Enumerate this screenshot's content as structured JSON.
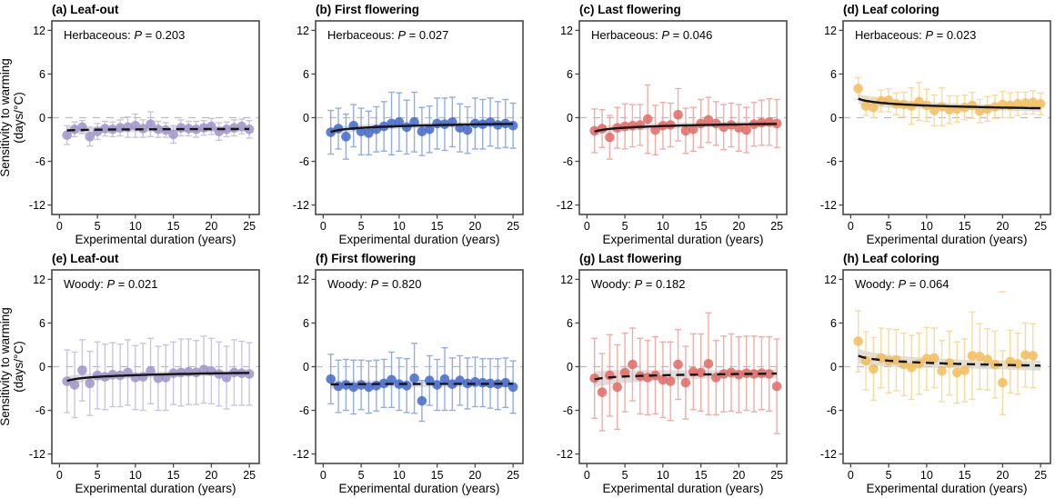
{
  "figure": {
    "name": "Phenological sensitivity to warming vs experimental duration",
    "background": "#ffffff",
    "border_color": "#474747",
    "zero_line_color": "#bcbcbc",
    "trend_color": "#141414",
    "band_color": "#c4c4c4",
    "text_color": "#000000",
    "xlabel": "Experimental duration (years)",
    "ylabel_lines": [
      "Sensitivity to warming",
      "(days/°C)"
    ],
    "x_ticks": [
      0,
      5,
      10,
      15,
      20,
      25
    ],
    "y_ticks": [
      12,
      6,
      0,
      -6,
      -12
    ],
    "xlim": [
      -1,
      26.3
    ],
    "ylim": [
      -13.3,
      13.3
    ],
    "p_symbol": "P"
  },
  "chart_data": [
    {
      "type": "scatter",
      "panel_letter": "(a)",
      "title": "Leaf-out",
      "group": "Herbaceous",
      "p_value": "0.203",
      "point_color": "#a094c8",
      "bar_color": "#c9c0e2",
      "show_ylabel": true,
      "trend": {
        "style": "dashed",
        "y_at_x1": -1.75,
        "y_at_x25": -1.55,
        "band_halfwidth": [
          0.5,
          0.3,
          0.4
        ]
      },
      "x": [
        1,
        2,
        3,
        4,
        5,
        6,
        7,
        8,
        9,
        10,
        11,
        12,
        13,
        14,
        15,
        16,
        17,
        18,
        19,
        20,
        21,
        22,
        23,
        24,
        25
      ],
      "y": [
        -2.4,
        -1.6,
        -1.3,
        -2.6,
        -1.9,
        -1.5,
        -1.6,
        -1.4,
        -1.3,
        -1.1,
        -1.5,
        -0.9,
        -1.6,
        -1.7,
        -2.3,
        -1.4,
        -1.5,
        -1.6,
        -1.4,
        -1.2,
        -1.9,
        -1.6,
        -1.4,
        -1.2,
        -1.6
      ],
      "err": [
        1.3,
        1.0,
        0.9,
        1.3,
        1.1,
        1.0,
        1.0,
        1.1,
        1.4,
        1.6,
        1.2,
        1.7,
        1.1,
        1.0,
        1.2,
        1.1,
        1.0,
        1.1,
        1.0,
        1.1,
        1.2,
        1.0,
        1.1,
        1.0,
        1.2
      ]
    },
    {
      "type": "scatter",
      "panel_letter": "(b)",
      "title": "First flowering",
      "group": "Herbaceous",
      "p_value": "0.027",
      "point_color": "#4468c9",
      "bar_color": "#8ea8e4",
      "show_ylabel": false,
      "trend": {
        "style": "solid",
        "y_at_x1": -1.95,
        "y_at_x25": -0.85,
        "band_halfwidth": [
          0.5,
          0.3,
          0.4
        ]
      },
      "x": [
        1,
        2,
        3,
        4,
        5,
        6,
        7,
        8,
        9,
        10,
        11,
        12,
        13,
        14,
        15,
        16,
        17,
        18,
        19,
        20,
        21,
        22,
        23,
        24,
        25
      ],
      "y": [
        -2.0,
        -1.5,
        -2.6,
        -1.1,
        -1.9,
        -2.1,
        -1.6,
        -1.2,
        -0.8,
        -0.6,
        -1.3,
        -0.6,
        -1.9,
        -1.6,
        -0.8,
        -0.9,
        -0.6,
        -1.4,
        -1.7,
        -0.8,
        -0.9,
        -0.6,
        -1.0,
        -0.8,
        -1.1
      ],
      "err": [
        3.0,
        2.8,
        3.1,
        2.9,
        3.2,
        3.0,
        3.1,
        3.4,
        4.3,
        4.0,
        3.7,
        4.1,
        3.3,
        3.2,
        3.5,
        3.6,
        3.4,
        3.3,
        3.2,
        3.5,
        3.4,
        3.3,
        3.2,
        3.3,
        3.1
      ]
    },
    {
      "type": "scatter",
      "panel_letter": "(c)",
      "title": "Last flowering",
      "group": "Herbaceous",
      "p_value": "0.046",
      "point_color": "#e06a65",
      "bar_color": "#f2a8a3",
      "show_ylabel": false,
      "trend": {
        "style": "solid",
        "y_at_x1": -1.9,
        "y_at_x25": -0.85,
        "band_halfwidth": [
          0.55,
          0.3,
          0.45
        ]
      },
      "x": [
        1,
        2,
        3,
        4,
        5,
        6,
        7,
        8,
        9,
        10,
        11,
        12,
        13,
        14,
        15,
        16,
        17,
        18,
        19,
        20,
        21,
        22,
        23,
        24,
        25
      ],
      "y": [
        -1.8,
        -1.5,
        -2.7,
        -1.4,
        -1.2,
        -1.1,
        -1.0,
        -0.2,
        -1.7,
        -1.1,
        -1.0,
        0.4,
        -1.8,
        -1.6,
        -0.8,
        -0.3,
        -0.8,
        -1.3,
        -1.0,
        -1.4,
        -1.7,
        -0.9,
        -0.7,
        -0.6,
        -0.8
      ],
      "err": [
        3.0,
        2.6,
        3.0,
        2.8,
        3.1,
        2.9,
        2.8,
        4.7,
        3.4,
        3.2,
        3.0,
        3.6,
        3.1,
        3.0,
        3.3,
        3.1,
        3.0,
        3.1,
        3.0,
        3.2,
        3.1,
        3.0,
        3.1,
        3.2,
        3.3
      ]
    },
    {
      "type": "scatter",
      "panel_letter": "(d)",
      "title": "Leaf coloring",
      "group": "Herbaceous",
      "p_value": "0.023",
      "point_color": "#f2bd5c",
      "bar_color": "#f8d89c",
      "show_ylabel": false,
      "trend": {
        "style": "solid",
        "y_at_x1": 2.6,
        "y_at_x25": 1.3,
        "band_halfwidth": [
          0.7,
          0.3,
          0.45
        ]
      },
      "x": [
        1,
        2,
        3,
        4,
        5,
        6,
        7,
        8,
        9,
        10,
        11,
        12,
        13,
        14,
        15,
        16,
        17,
        18,
        19,
        20,
        21,
        22,
        23,
        24,
        25
      ],
      "y": [
        4.0,
        1.6,
        1.4,
        2.3,
        2.4,
        1.9,
        1.8,
        1.6,
        2.2,
        1.7,
        1.0,
        1.5,
        1.1,
        1.2,
        1.4,
        1.7,
        0.9,
        1.2,
        1.5,
        1.8,
        1.7,
        1.9,
        2.0,
        2.1,
        1.9
      ],
      "err": [
        1.5,
        1.3,
        1.4,
        1.5,
        1.6,
        1.5,
        1.7,
        2.5,
        2.6,
        2.2,
        2.1,
        2.6,
        1.9,
        1.8,
        1.7,
        1.8,
        1.6,
        1.7,
        1.6,
        1.8,
        1.7,
        1.6,
        1.5,
        1.6,
        1.5
      ]
    },
    {
      "type": "scatter",
      "panel_letter": "(e)",
      "title": "Leaf-out",
      "group": "Woody",
      "p_value": "0.021",
      "point_color": "#a094c8",
      "bar_color": "#c9c0e2",
      "show_ylabel": true,
      "trend": {
        "style": "solid",
        "y_at_x1": -1.95,
        "y_at_x25": -0.85,
        "band_halfwidth": [
          0.6,
          0.3,
          0.4
        ]
      },
      "x": [
        1,
        2,
        3,
        4,
        5,
        6,
        7,
        8,
        9,
        10,
        11,
        12,
        13,
        14,
        15,
        16,
        17,
        18,
        19,
        20,
        21,
        22,
        23,
        24,
        25
      ],
      "y": [
        -2.0,
        -2.5,
        -0.5,
        -2.3,
        -1.2,
        -1.4,
        -1.1,
        -1.2,
        -0.8,
        -1.5,
        -1.4,
        -0.6,
        -1.6,
        -1.5,
        -0.9,
        -0.8,
        -0.7,
        -0.8,
        -0.4,
        -0.6,
        -1.0,
        -1.5,
        -0.8,
        -0.9,
        -1.0
      ],
      "err": [
        4.3,
        4.5,
        4.2,
        4.4,
        4.6,
        4.5,
        4.4,
        4.3,
        4.5,
        4.4,
        4.6,
        4.5,
        4.4,
        4.5,
        4.3,
        4.6,
        4.5,
        4.4,
        4.6,
        4.5,
        4.4,
        4.3,
        4.5,
        4.4,
        4.3
      ]
    },
    {
      "type": "scatter",
      "panel_letter": "(f)",
      "title": "First flowering",
      "group": "Woody",
      "p_value": "0.820",
      "point_color": "#4468c9",
      "bar_color": "#8ea8e4",
      "show_ylabel": false,
      "trend": {
        "style": "dashed",
        "y_at_x1": -2.45,
        "y_at_x25": -2.35,
        "band_halfwidth": [
          0.6,
          0.35,
          0.5
        ]
      },
      "x": [
        1,
        2,
        3,
        4,
        5,
        6,
        7,
        8,
        9,
        10,
        11,
        12,
        13,
        14,
        15,
        16,
        17,
        18,
        19,
        20,
        21,
        22,
        23,
        24,
        25
      ],
      "y": [
        -1.7,
        -2.7,
        -2.5,
        -2.8,
        -2.5,
        -2.8,
        -2.6,
        -2.3,
        -1.8,
        -2.4,
        -2.6,
        -1.6,
        -4.7,
        -1.9,
        -2.5,
        -1.7,
        -2.4,
        -1.9,
        -2.3,
        -2.1,
        -2.2,
        -2.3,
        -2.4,
        -2.2,
        -2.8
      ],
      "err": [
        3.4,
        3.6,
        3.5,
        3.7,
        3.4,
        3.6,
        3.5,
        3.3,
        3.8,
        3.6,
        3.7,
        4.8,
        2.8,
        3.4,
        3.5,
        4.3,
        3.6,
        3.4,
        3.5,
        3.4,
        3.3,
        3.4,
        3.5,
        3.4,
        3.6
      ]
    },
    {
      "type": "scatter",
      "panel_letter": "(g)",
      "title": "Last flowering",
      "group": "Woody",
      "p_value": "0.182",
      "point_color": "#e06a65",
      "bar_color": "#f2a8a3",
      "show_ylabel": false,
      "trend": {
        "style": "dashed",
        "y_at_x1": -1.75,
        "y_at_x25": -0.95,
        "band_halfwidth": [
          1.1,
          0.4,
          0.6
        ]
      },
      "x": [
        1,
        2,
        3,
        4,
        5,
        6,
        7,
        8,
        9,
        10,
        11,
        12,
        13,
        14,
        15,
        16,
        17,
        18,
        19,
        20,
        21,
        22,
        23,
        24,
        25
      ],
      "y": [
        -1.6,
        -3.5,
        -1.2,
        -2.8,
        -0.8,
        0.3,
        -1.3,
        -1.5,
        -1.2,
        -1.8,
        -2.0,
        0.3,
        -2.2,
        -0.7,
        -0.8,
        0.4,
        -1.5,
        -1.0,
        -0.8,
        -1.1,
        -0.9,
        -1.0,
        -0.9,
        -1.0,
        -2.7
      ],
      "err": [
        5.5,
        5.3,
        5.6,
        5.8,
        5.4,
        5.0,
        5.2,
        5.1,
        5.3,
        5.2,
        5.4,
        4.8,
        5.0,
        5.2,
        5.3,
        7.0,
        5.1,
        5.2,
        5.3,
        5.2,
        5.1,
        5.2,
        5.0,
        5.1,
        6.5
      ]
    },
    {
      "type": "scatter",
      "panel_letter": "(h)",
      "title": "Leaf coloring",
      "group": "Woody",
      "p_value": "0.064",
      "point_color": "#f2bd5c",
      "bar_color": "#f8d89c",
      "show_ylabel": false,
      "trend": {
        "style": "dashed",
        "y_at_x1": 1.5,
        "y_at_x25": 0.15,
        "band_halfwidth": [
          1.0,
          0.4,
          0.7
        ]
      },
      "x": [
        1,
        2,
        3,
        4,
        5,
        6,
        7,
        8,
        9,
        10,
        11,
        12,
        13,
        14,
        15,
        16,
        17,
        18,
        19,
        20,
        21,
        22,
        23,
        24
      ],
      "y": [
        3.5,
        0.8,
        -0.3,
        1.2,
        0.8,
        0.9,
        0.3,
        -0.1,
        0.4,
        1.1,
        1.2,
        -0.6,
        0.5,
        -0.8,
        -0.5,
        1.5,
        1.4,
        1.0,
        0.3,
        -2.2,
        0.7,
        0.4,
        1.6,
        1.5
      ],
      "err": [
        4.2,
        4.0,
        4.3,
        4.1,
        4.4,
        4.2,
        4.3,
        4.4,
        4.2,
        4.3,
        4.1,
        4.2,
        4.4,
        4.2,
        4.3,
        6.0,
        4.5,
        4.2,
        4.6,
        4.4,
        4.3,
        4.2,
        4.4,
        4.4
      ],
      "extra_marks": [
        {
          "type": "error-cap",
          "x": 20,
          "y": 10.3
        }
      ]
    }
  ]
}
